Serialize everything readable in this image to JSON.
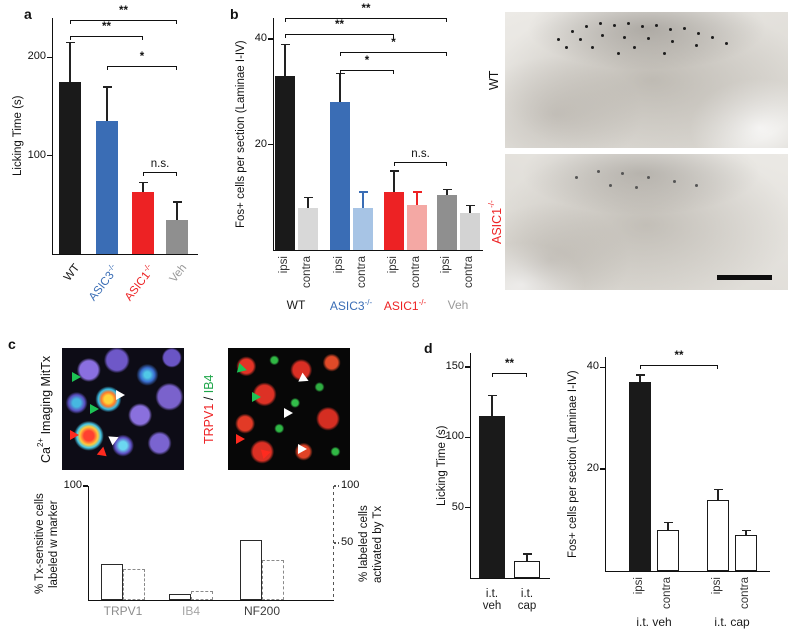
{
  "panel_labels": {
    "a": "a",
    "b": "b",
    "c": "c",
    "d": "d"
  },
  "image_labels": {
    "wt": "WT",
    "asic1_base": "ASIC1",
    "asic1_sup": "-/-",
    "ca_pre": "Ca",
    "ca_sup": "2+",
    "ca_post": " Imaging MitTx",
    "ch1": "TRPV1",
    "sep": " / ",
    "ch2": "IB4"
  },
  "colors": {
    "blue": "#3a6db5",
    "red": "#ed2224",
    "green": "#1fa64a",
    "gray": "#9a9a9a",
    "light_blue": "#a7c4e5",
    "pink": "#f4a8a4",
    "light_gray": "#d8d8d8"
  },
  "chart_data": [
    {
      "id": "a",
      "type": "bar",
      "ylabel": "Licking Time (s)",
      "ymax": 240,
      "yticks": [
        100,
        200
      ],
      "bars": [
        {
          "label": "WT",
          "value": 175,
          "err": 40,
          "fill": "#1a1a1a",
          "label_color": "#1a1a1a"
        },
        {
          "label": "ASIC3",
          "sup": "-/-",
          "value": 135,
          "err": 35,
          "fill": "#3a6db5",
          "label_color": "#3a6db5"
        },
        {
          "label": "ASIC1",
          "sup": "-/-",
          "value": 63,
          "err": 10,
          "fill": "#ed2224",
          "label_color": "#ed2224"
        },
        {
          "label": "Veh",
          "value": 35,
          "err": 18,
          "fill": "#8f8f8f",
          "label_color": "#9a9a9a"
        }
      ],
      "sig": [
        {
          "from": 0,
          "to": 3,
          "label": "**"
        },
        {
          "from": 0,
          "to": 2,
          "label": "**"
        },
        {
          "from": 1,
          "to": 3,
          "label": "*"
        },
        {
          "from": 2,
          "to": 3,
          "label": "n.s."
        }
      ]
    },
    {
      "id": "b",
      "type": "bar",
      "ylabel": "Fos+ cells per section (Laminae I-IV)",
      "ymax": 44,
      "yticks": [
        20,
        40
      ],
      "bars": [
        {
          "label": "ipsi",
          "value": 33,
          "err": 6,
          "fill": "#1a1a1a"
        },
        {
          "label": "contra",
          "value": 8,
          "err": 2,
          "fill": "#d8d8d8"
        },
        {
          "label": "ipsi",
          "value": 28,
          "err": 5.5,
          "fill": "#3a6db5"
        },
        {
          "label": "contra",
          "value": 8,
          "err": 3,
          "fill": "#a7c4e5",
          "err_color": "#3a6db5"
        },
        {
          "label": "ipsi",
          "value": 11,
          "err": 4,
          "fill": "#ed2224"
        },
        {
          "label": "contra",
          "value": 8.5,
          "err": 2.5,
          "fill": "#f4a8a4",
          "err_color": "#ed2224"
        },
        {
          "label": "ipsi",
          "value": 10.5,
          "err": 1,
          "fill": "#8f8f8f"
        },
        {
          "label": "contra",
          "value": 7,
          "err": 1.5,
          "fill": "#d3d3d3"
        }
      ],
      "groups": [
        {
          "label": "WT",
          "color": "#1a1a1a"
        },
        {
          "label": "ASIC3",
          "sup": "-/-",
          "color": "#3a6db5"
        },
        {
          "label": "ASIC1",
          "sup": "-/-",
          "color": "#ed2224"
        },
        {
          "label": "Veh",
          "color": "#9a9a9a"
        }
      ],
      "sig": [
        {
          "from": 0,
          "to": 6,
          "label": "**"
        },
        {
          "from": 0,
          "to": 4,
          "label": "**"
        },
        {
          "from": 2,
          "to": 6,
          "label": "*"
        },
        {
          "from": 2,
          "to": 4,
          "label": "*"
        },
        {
          "from": 4,
          "to": 6,
          "label": "n.s."
        }
      ]
    },
    {
      "id": "c",
      "type": "paired-bar",
      "categories": [
        {
          "label": "TRPV1",
          "color": "#8d8d8d"
        },
        {
          "label": "IB4",
          "color": "#a6a6a6"
        },
        {
          "label": "NF200",
          "color": "#3c3c3c"
        }
      ],
      "left_axis": {
        "label": "% Tx-sensitive cells\nlabeled w marker",
        "ticks": [
          100
        ],
        "max": 100
      },
      "right_axis": {
        "label": "% labeled cells\nactivated by Tx",
        "ticks": [
          50,
          100
        ],
        "max": 100
      },
      "series": [
        {
          "name": "% Tx-sensitive cells labeled w marker",
          "style": "solid",
          "values": [
            32,
            5,
            53
          ]
        },
        {
          "name": "% labeled cells activated by Tx",
          "style": "dashed",
          "values": [
            27,
            8,
            35
          ]
        }
      ]
    },
    {
      "id": "d1",
      "type": "bar",
      "ylabel": "Licking Time (s)",
      "ymax": 160,
      "yticks": [
        50,
        100,
        150
      ],
      "bars": [
        {
          "label": "i.t.\nveh",
          "value": 115,
          "err": 15,
          "fill": "#1a1a1a"
        },
        {
          "label": "i.t.\ncap",
          "value": 12,
          "err": 5,
          "fill": "#ffffff",
          "outline": true
        }
      ],
      "sig": [
        {
          "from": 0,
          "to": 1,
          "label": "**"
        }
      ]
    },
    {
      "id": "d2",
      "type": "bar",
      "ylabel": "Fos+ cells per section (Laminae I-IV)",
      "ymax": 42,
      "yticks": [
        20,
        40
      ],
      "bars": [
        {
          "label": "ipsi",
          "value": 37,
          "err": 1.5,
          "fill": "#1a1a1a"
        },
        {
          "label": "contra",
          "value": 8,
          "err": 1.5,
          "fill": "#ffffff",
          "outline": true
        },
        {
          "label": "ipsi",
          "value": 14,
          "err": 2,
          "fill": "#ffffff",
          "outline": true
        },
        {
          "label": "contra",
          "value": 7,
          "err": 1,
          "fill": "#ffffff",
          "outline": true
        }
      ],
      "groups": [
        {
          "label": "i.t. veh",
          "color": "#1a1a1a"
        },
        {
          "label": "i.t. cap",
          "color": "#1a1a1a"
        }
      ],
      "sig": [
        {
          "from": 0,
          "to": 2,
          "label": "**"
        }
      ]
    }
  ]
}
